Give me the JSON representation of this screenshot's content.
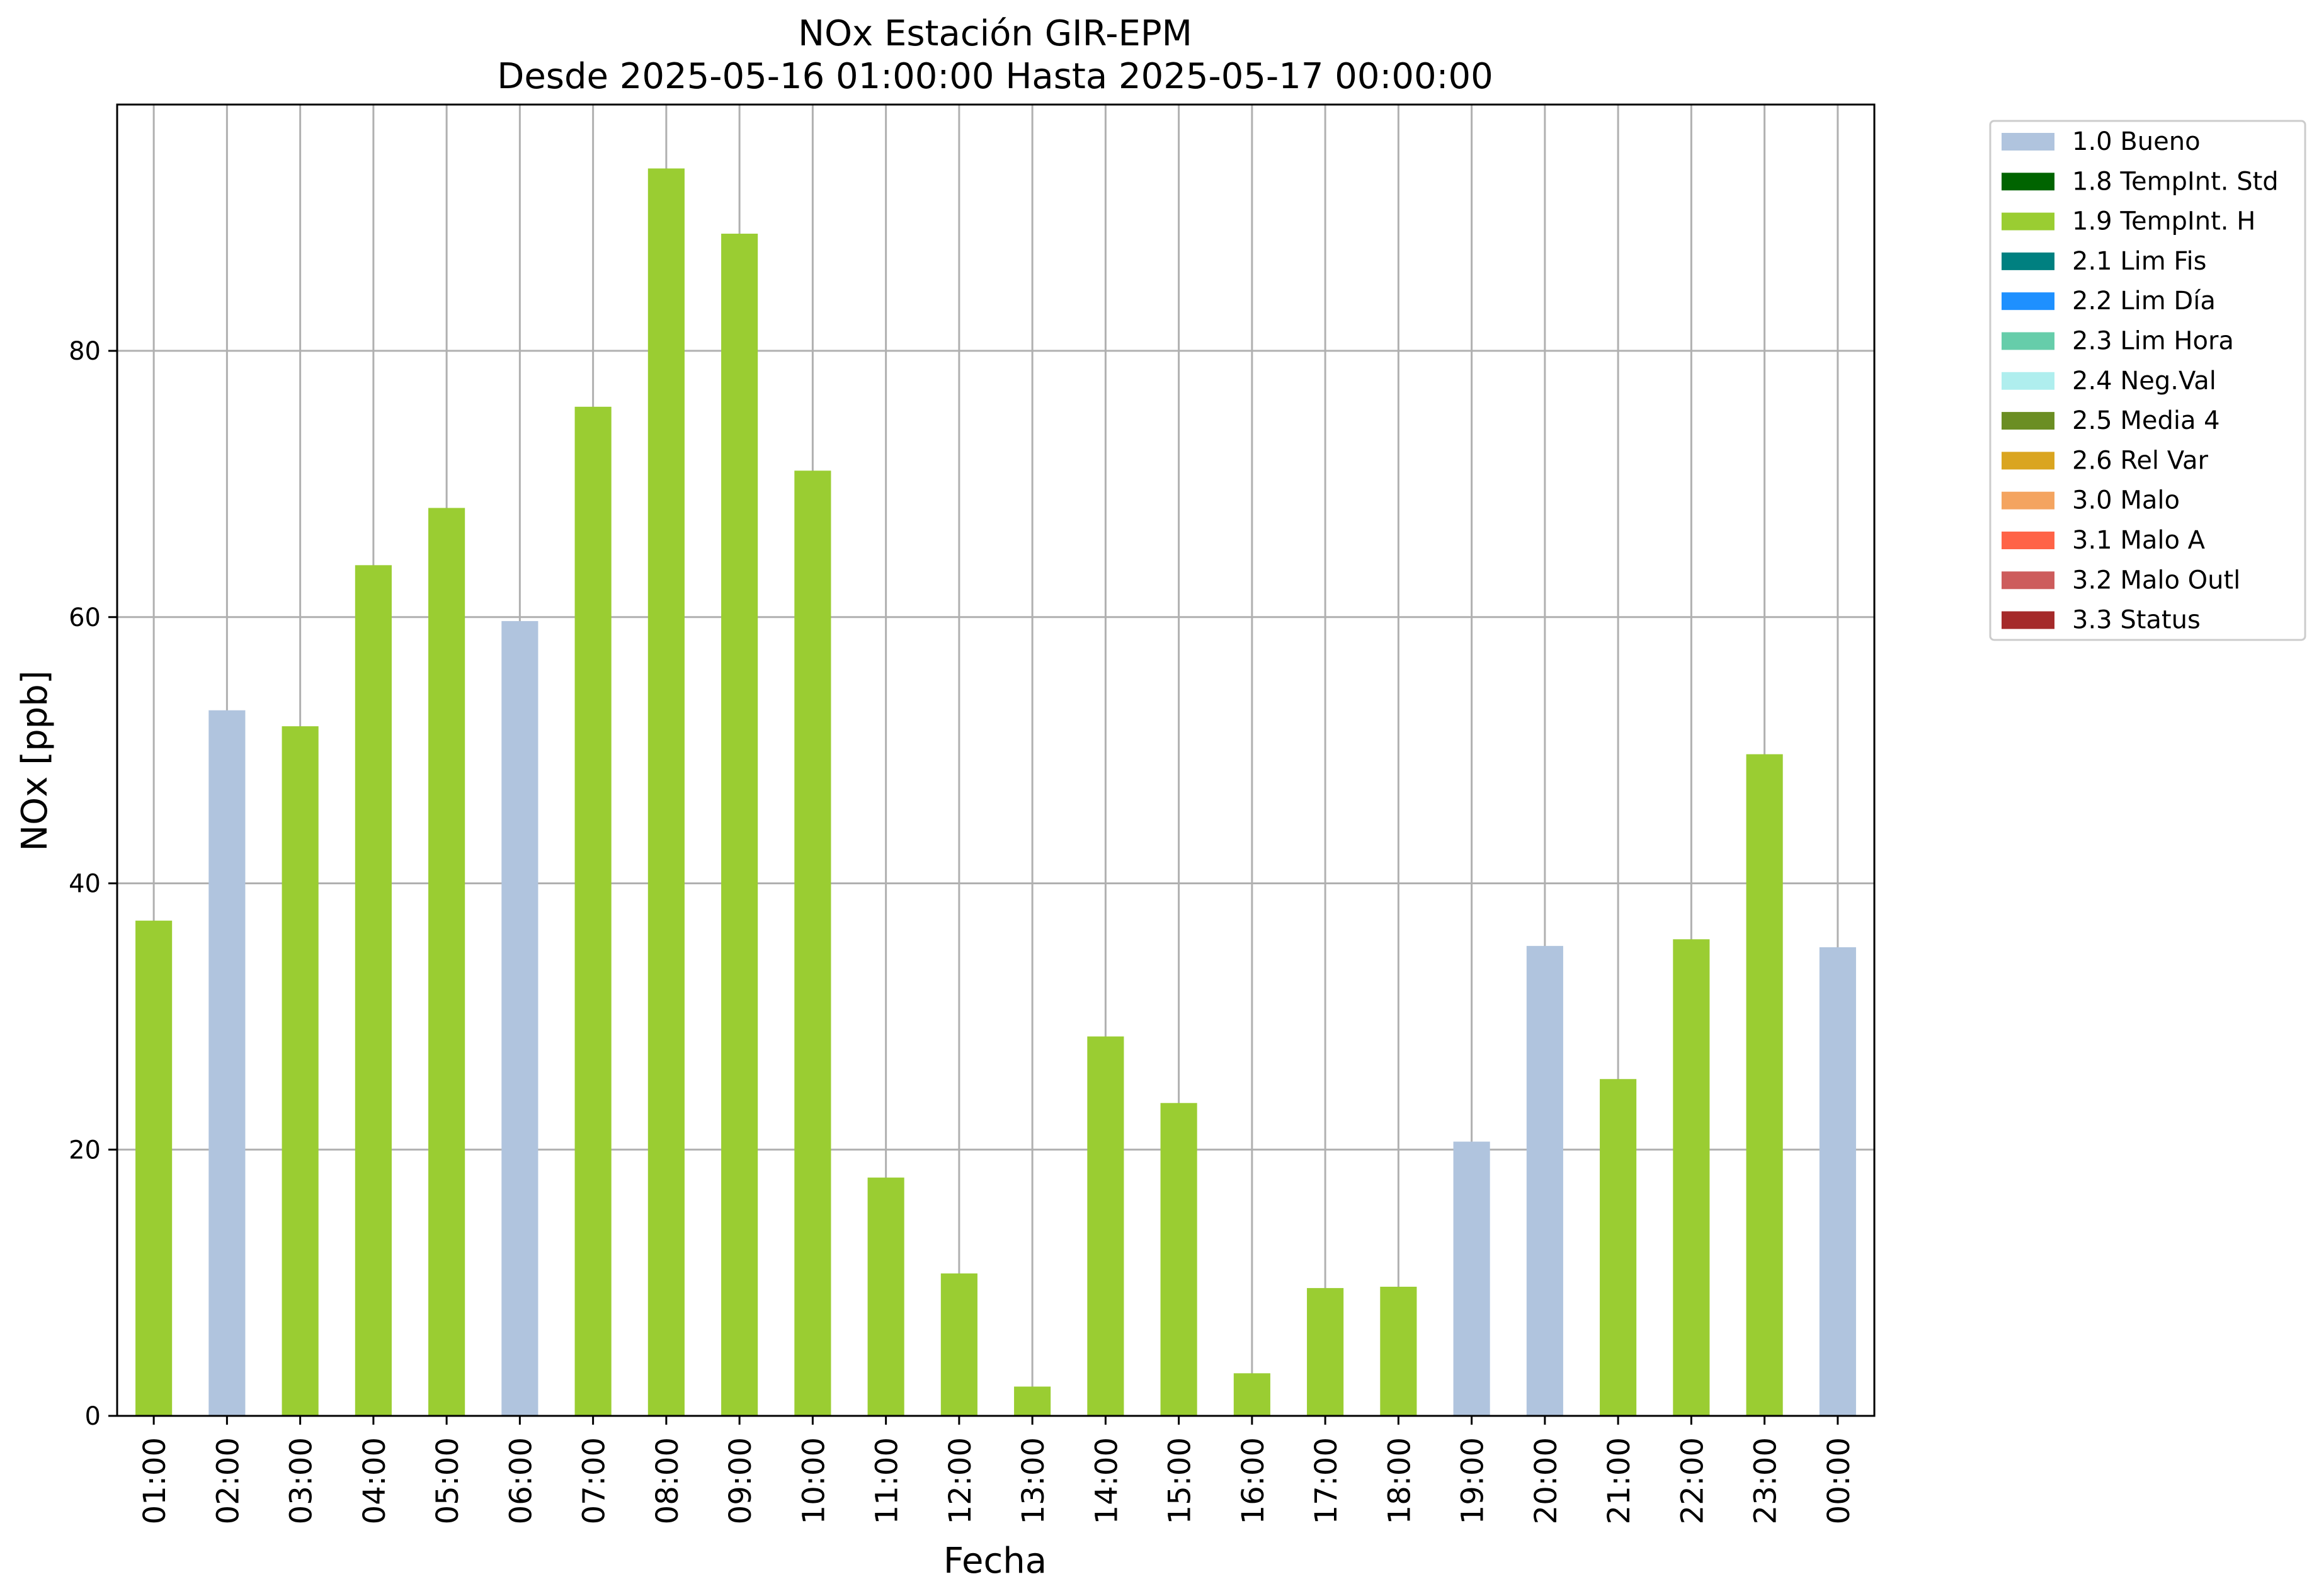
{
  "chart_data": {
    "type": "bar",
    "title": "NOx Estación GIR-EPM",
    "subtitle": "Desde 2025-05-16 01:00:00 Hasta 2025-05-17 00:00:00",
    "xlabel": "Fecha",
    "ylabel": "NOx [ppb]",
    "ylim": [
      0,
      98.5
    ],
    "yticks": [
      0,
      20,
      40,
      60,
      80
    ],
    "grid": true,
    "legend_position": "outside-right-top",
    "categories": [
      "01:00",
      "02:00",
      "03:00",
      "04:00",
      "05:00",
      "06:00",
      "07:00",
      "08:00",
      "09:00",
      "10:00",
      "11:00",
      "12:00",
      "13:00",
      "14:00",
      "15:00",
      "16:00",
      "17:00",
      "18:00",
      "19:00",
      "20:00",
      "21:00",
      "22:00",
      "23:00",
      "00:00"
    ],
    "values": [
      37.2,
      53.0,
      51.8,
      63.9,
      68.2,
      59.7,
      75.8,
      93.7,
      88.8,
      71.0,
      17.9,
      10.7,
      2.2,
      28.5,
      23.5,
      3.2,
      9.6,
      9.7,
      20.6,
      35.3,
      25.3,
      35.8,
      49.7,
      35.2
    ],
    "flags": [
      "1.9 TempInt. H",
      "1.0 Bueno",
      "1.9 TempInt. H",
      "1.9 TempInt. H",
      "1.9 TempInt. H",
      "1.0 Bueno",
      "1.9 TempInt. H",
      "1.9 TempInt. H",
      "1.9 TempInt. H",
      "1.9 TempInt. H",
      "1.9 TempInt. H",
      "1.9 TempInt. H",
      "1.9 TempInt. H",
      "1.9 TempInt. H",
      "1.9 TempInt. H",
      "1.9 TempInt. H",
      "1.9 TempInt. H",
      "1.9 TempInt. H",
      "1.0 Bueno",
      "1.0 Bueno",
      "1.9 TempInt. H",
      "1.9 TempInt. H",
      "1.9 TempInt. H",
      "1.0 Bueno"
    ],
    "legend": [
      {
        "label": "1.0 Bueno",
        "color": "#b0c4de"
      },
      {
        "label": "1.8 TempInt. Std",
        "color": "#006400"
      },
      {
        "label": "1.9 TempInt. H",
        "color": "#9acd32"
      },
      {
        "label": "2.1 Lim Fis",
        "color": "#008080"
      },
      {
        "label": "2.2 Lim Día",
        "color": "#1e90ff"
      },
      {
        "label": "2.3 Lim Hora",
        "color": "#66cdaa"
      },
      {
        "label": "2.4 Neg.Val",
        "color": "#afeeee"
      },
      {
        "label": "2.5 Media 4",
        "color": "#6b8e23"
      },
      {
        "label": "2.6 Rel Var",
        "color": "#daa520"
      },
      {
        "label": "3.0 Malo",
        "color": "#f4a460"
      },
      {
        "label": "3.1 Malo A",
        "color": "#ff6347"
      },
      {
        "label": "3.2 Malo Outl",
        "color": "#cd5c5c"
      },
      {
        "label": "3.3 Status",
        "color": "#a52a2a"
      }
    ]
  }
}
